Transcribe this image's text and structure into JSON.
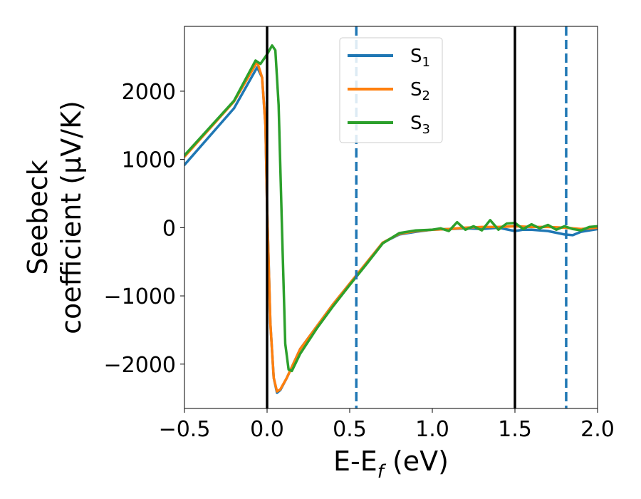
{
  "chart_data": {
    "type": "line",
    "xlabel": {
      "main": "E-E",
      "sub": "f",
      "unit": " (eV)"
    },
    "ylabel": {
      "line1": "Seebeck",
      "line2": "coefficient  (μV/K)"
    },
    "xlim": [
      -0.5,
      2.0
    ],
    "ylim": [
      -2650,
      2950
    ],
    "xticks": [
      -0.5,
      0.0,
      0.5,
      1.0,
      1.5,
      2.0
    ],
    "xtick_labels": [
      "−0.5",
      "0.0",
      "0.5",
      "1.0",
      "1.5",
      "2.0"
    ],
    "yticks": [
      -2000,
      -1000,
      0,
      1000,
      2000
    ],
    "ytick_labels": [
      "−2000",
      "−1000",
      "0",
      "1000",
      "2000"
    ],
    "grid": false,
    "legend": {
      "placement": "top-center"
    },
    "vlines": [
      {
        "x": 0.0,
        "style": "solid",
        "color": "#000000"
      },
      {
        "x": 1.5,
        "style": "solid",
        "color": "#000000"
      },
      {
        "x": 0.54,
        "style": "dashed",
        "color": "#1f77b4"
      },
      {
        "x": 1.81,
        "style": "dashed",
        "color": "#1f77b4"
      }
    ],
    "series": [
      {
        "name": "S",
        "sub": "1",
        "color": "#1f77b4",
        "x": [
          -0.5,
          -0.2,
          -0.06,
          -0.03,
          -0.01,
          0.0,
          0.02,
          0.04,
          0.06,
          0.08,
          0.12,
          0.2,
          0.3,
          0.4,
          0.5,
          0.6,
          0.7,
          0.8,
          0.9,
          1.0,
          1.1,
          1.2,
          1.3,
          1.4,
          1.5,
          1.55,
          1.6,
          1.7,
          1.8,
          1.85,
          1.9,
          2.0
        ],
        "y": [
          920,
          1750,
          2350,
          2200,
          1500,
          300,
          -1400,
          -2200,
          -2420,
          -2380,
          -2200,
          -1780,
          -1450,
          -1120,
          -820,
          -520,
          -220,
          -100,
          -60,
          -30,
          -20,
          -10,
          -20,
          0,
          -50,
          -30,
          -30,
          -50,
          -100,
          -110,
          -60,
          -20
        ]
      },
      {
        "name": "S",
        "sub": "2",
        "color": "#ff7f0e",
        "x": [
          -0.5,
          -0.2,
          -0.06,
          -0.03,
          -0.01,
          0.0,
          0.02,
          0.04,
          0.06,
          0.08,
          0.12,
          0.2,
          0.3,
          0.4,
          0.5,
          0.6,
          0.7,
          0.8,
          0.9,
          1.0,
          1.1,
          1.2,
          1.3,
          1.4,
          1.5,
          1.6,
          1.7,
          1.8,
          1.9,
          2.0
        ],
        "y": [
          1040,
          1850,
          2430,
          2200,
          1500,
          300,
          -1400,
          -2200,
          -2400,
          -2370,
          -2200,
          -1780,
          -1450,
          -1120,
          -820,
          -520,
          -220,
          -90,
          -50,
          -30,
          -20,
          0,
          10,
          10,
          20,
          10,
          10,
          0,
          -20,
          0
        ]
      },
      {
        "name": "S",
        "sub": "3",
        "color": "#2ca02c",
        "x": [
          -0.5,
          -0.2,
          -0.07,
          -0.04,
          0.0,
          0.03,
          0.05,
          0.07,
          0.09,
          0.11,
          0.13,
          0.15,
          0.2,
          0.3,
          0.4,
          0.5,
          0.6,
          0.7,
          0.8,
          0.9,
          1.0,
          1.05,
          1.1,
          1.15,
          1.2,
          1.25,
          1.3,
          1.35,
          1.4,
          1.45,
          1.5,
          1.55,
          1.6,
          1.65,
          1.7,
          1.75,
          1.8,
          1.85,
          1.9,
          1.95,
          2.0
        ],
        "y": [
          1060,
          1860,
          2450,
          2400,
          2540,
          2670,
          2600,
          1800,
          0,
          -1700,
          -2080,
          -2100,
          -1850,
          -1480,
          -1150,
          -840,
          -540,
          -230,
          -80,
          -40,
          -30,
          -10,
          -50,
          80,
          -30,
          20,
          -40,
          110,
          -30,
          60,
          70,
          -20,
          50,
          -10,
          40,
          -30,
          20,
          -20,
          -40,
          10,
          20
        ]
      }
    ]
  }
}
